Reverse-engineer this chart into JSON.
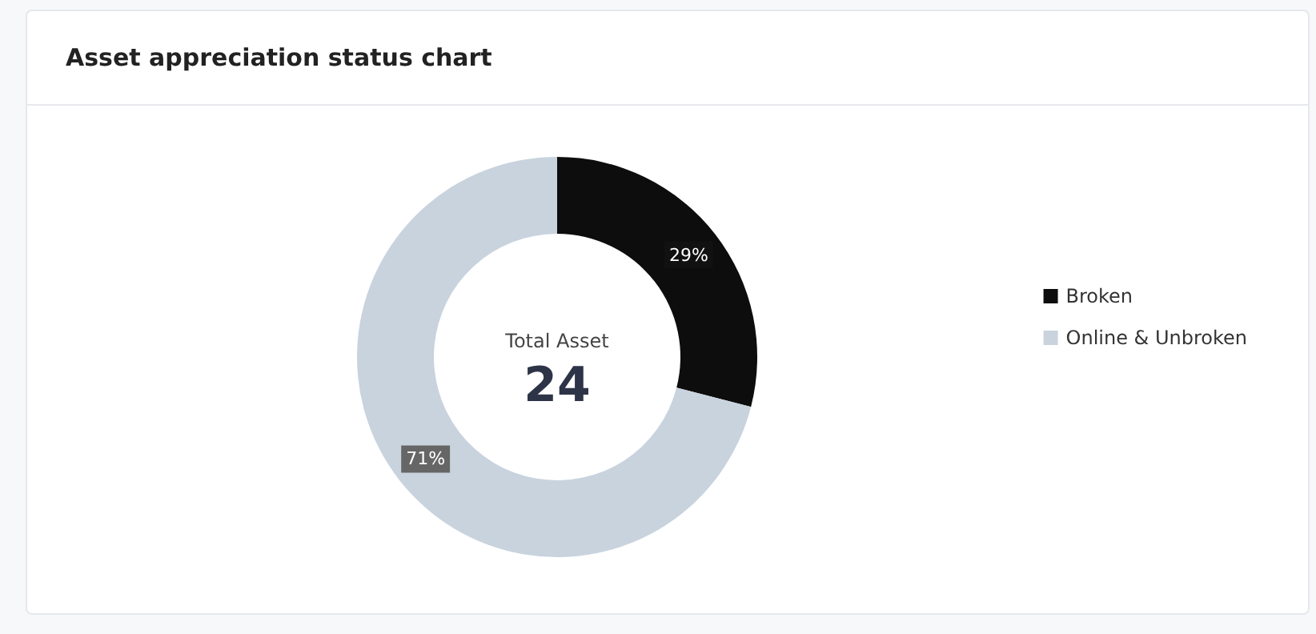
{
  "chart_data": {
    "type": "donut",
    "title": "Asset appreciation status chart",
    "categories": [
      "Broken",
      "Online & Unbroken"
    ],
    "values": [
      29,
      71
    ],
    "colors": [
      "#0d0d0d",
      "#c8d3de"
    ],
    "value_labels": [
      "29%",
      "71%"
    ],
    "legend": "right",
    "annotations": [
      "Total Asset",
      "24"
    ]
  }
}
